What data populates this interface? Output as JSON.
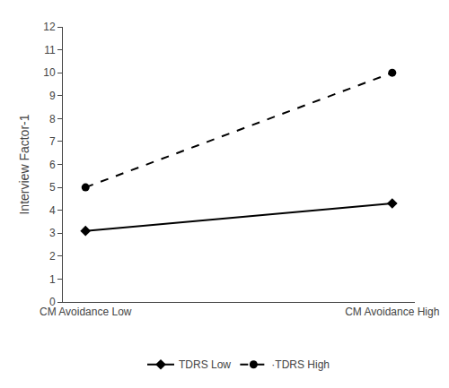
{
  "chart_data": {
    "type": "line",
    "categories": [
      "CM Avoidance Low",
      "CM Avoidance High"
    ],
    "series": [
      {
        "name": "TDRS Low",
        "color": "#000000",
        "values": [
          3.1,
          4.3
        ],
        "marker": "diamond",
        "line_style": "solid"
      },
      {
        "name": "·TDRS High",
        "color": "#000000",
        "values": [
          5.0,
          10.0
        ],
        "marker": "circle",
        "line_style": "dashed"
      }
    ],
    "ylabel": "Interview Factor-1",
    "ylim": [
      0,
      12
    ],
    "yticks": [
      0,
      1,
      2,
      3,
      4,
      5,
      6,
      7,
      8,
      9,
      10,
      11,
      12
    ],
    "grid": false,
    "legend": "bottom"
  }
}
